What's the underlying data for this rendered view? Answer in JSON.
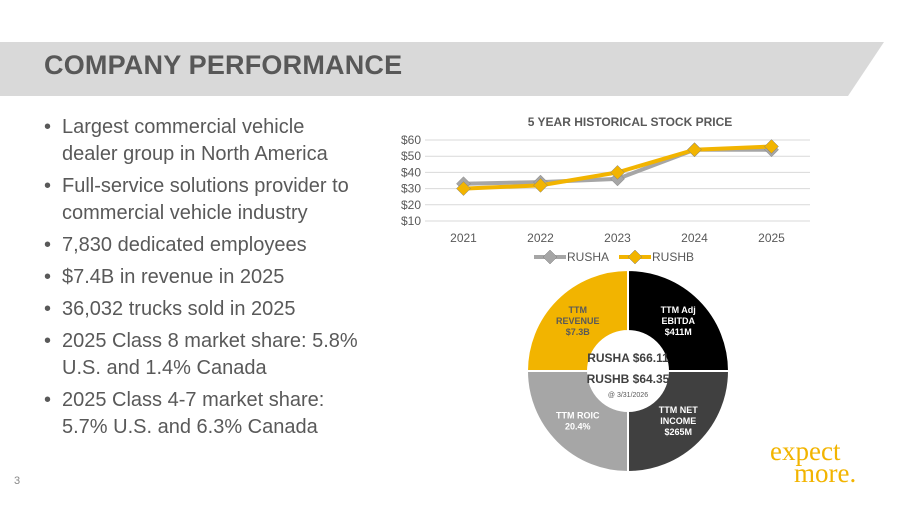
{
  "slide": {
    "title": "COMPANY PERFORMANCE",
    "page_number": "3",
    "bullets": [
      "Largest commercial vehicle dealer group in North America",
      "Full-service solutions provider to commercial vehicle industry",
      "7,830 dedicated employees",
      "$7.4B in revenue in 2025",
      "36,032 trucks sold in 2025",
      "2025 Class 8 market share: 5.8% U.S. and 1.4% Canada",
      "2025 Class 4-7 market share: 5.7% U.S. and 6.3% Canada"
    ],
    "bullet_glyph": "•",
    "logo": {
      "line1": "expect",
      "line2": "more."
    }
  },
  "colors": {
    "brand_yellow": "#f2b400",
    "title_band": "#d9d9d9",
    "dark": "#000000",
    "charcoal": "#404040",
    "gray": "#a6a6a6",
    "text": "#595959"
  },
  "chart_data": [
    {
      "type": "line",
      "title": "5 YEAR HISTORICAL STOCK PRICE",
      "x": [
        "2021",
        "2022",
        "2023",
        "2024",
        "2025"
      ],
      "y_ticks": [
        "$10",
        "$20",
        "$30",
        "$40",
        "$50",
        "$60"
      ],
      "ylim": [
        10,
        60
      ],
      "grid": true,
      "legend_position": "bottom",
      "series": [
        {
          "name": "RUSHA",
          "values": [
            33,
            34,
            36,
            54,
            54
          ],
          "color": "#a6a6a6"
        },
        {
          "name": "RUSHB",
          "values": [
            30,
            32,
            40,
            54,
            56
          ],
          "color": "#f2b400"
        }
      ]
    },
    {
      "type": "pie",
      "style": "donut",
      "slices": [
        {
          "lines": [
            "TTM Adj",
            "EBITDA",
            "$411M"
          ],
          "value": 25,
          "color": "#000000",
          "text_color": "#ffffff"
        },
        {
          "lines": [
            "TTM NET",
            "INCOME",
            "$265M"
          ],
          "value": 25,
          "color": "#404040",
          "text_color": "#ffffff"
        },
        {
          "lines": [
            "TTM ROIC",
            "20.4%"
          ],
          "value": 25,
          "color": "#a6a6a6",
          "text_color": "#ffffff"
        },
        {
          "lines": [
            "TTM",
            "REVENUE",
            "$7.3B"
          ],
          "value": 25,
          "color": "#f2b400",
          "text_color": "#595959"
        }
      ],
      "center": {
        "line1": "RUSHA $66.11",
        "line2": "RUSHB $64.35",
        "line3": "@ 3/31/2026"
      }
    }
  ]
}
